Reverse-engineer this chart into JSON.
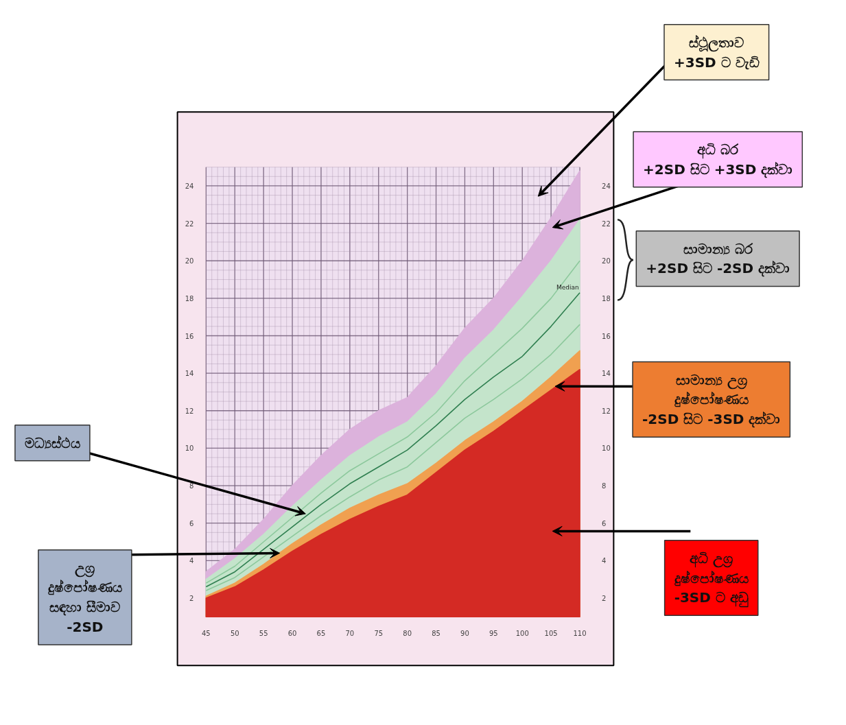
{
  "chart_data": {
    "type": "line",
    "x": [
      45,
      50,
      55,
      60,
      65,
      70,
      75,
      80,
      85,
      90,
      95,
      100,
      105,
      110
    ],
    "series": [
      {
        "type": "area",
        "color": "#dcb2dc",
        "values": [
          3.4,
          4.6,
          6.2,
          8.0,
          9.6,
          11.0,
          12.0,
          12.7,
          14.4,
          16.4,
          18.0,
          20.0,
          22.3,
          24.8
        ]
      },
      {
        "type": "area",
        "color": "#c4e4cb",
        "values": [
          3.0,
          4.1,
          5.4,
          6.9,
          8.3,
          9.6,
          10.6,
          11.4,
          12.9,
          14.8,
          16.3,
          18.1,
          20.0,
          22.2
        ]
      },
      {
        "type": "line",
        "color": "#8cc89c",
        "values": [
          2.8,
          3.7,
          5.0,
          6.3,
          7.6,
          8.8,
          9.7,
          10.6,
          11.9,
          13.6,
          15.0,
          16.4,
          18.0,
          20.0
        ]
      },
      {
        "name": "Median",
        "type": "line",
        "color": "#2f7f50",
        "values": [
          2.6,
          3.4,
          4.6,
          5.8,
          7.0,
          8.1,
          9.0,
          9.9,
          11.2,
          12.6,
          13.8,
          14.9,
          16.5,
          18.3
        ]
      },
      {
        "type": "line",
        "color": "#8cc89c",
        "values": [
          2.4,
          3.1,
          4.2,
          5.3,
          6.4,
          7.4,
          8.3,
          9.0,
          10.3,
          11.6,
          12.6,
          13.7,
          15.0,
          16.6
        ]
      },
      {
        "type": "area",
        "color": "#f0a050",
        "values": [
          2.1,
          2.8,
          3.8,
          4.9,
          5.9,
          6.8,
          7.5,
          8.1,
          9.2,
          10.4,
          11.4,
          12.5,
          13.8,
          15.2
        ]
      },
      {
        "type": "area",
        "color": "#d42a24",
        "values": [
          2.0,
          2.6,
          3.5,
          4.5,
          5.4,
          6.2,
          6.9,
          7.5,
          8.7,
          9.9,
          10.9,
          12.0,
          13.1,
          14.2
        ]
      }
    ],
    "xlim": [
      45,
      110
    ],
    "xticks": [
      45,
      50,
      55,
      60,
      65,
      70,
      75,
      80,
      85,
      90,
      95,
      100,
      105,
      110
    ],
    "ylim": [
      1,
      25
    ],
    "yticks": [
      2,
      4,
      6,
      8,
      10,
      12,
      14,
      16,
      18,
      20,
      22,
      24
    ],
    "y2lim": [
      1,
      25
    ],
    "y2ticks": [
      2,
      4,
      6,
      8,
      10,
      12,
      14,
      16,
      18,
      20,
      22,
      24
    ],
    "grid": true,
    "annotations": [
      "ස්ථූලතාව\n+3SD ට වැඩි",
      "අධි බර\n+2SD සිට +3SD දක්වා",
      "සාමාන්‍ය බර\n+2SD සිට -2SD දක්වා",
      {
        "text": "සාමාන්‍ය උග්‍ර\nදුෂ්පෝෂණය\n-2SD සිට -3SD දක්වා",
        "x": 105.7,
        "y": 13.3
      },
      "අධි උග්‍ර\nදුෂ්පෝෂණය\n-3SD ට අඩු",
      {
        "text": "මධ්‍යස්ථය",
        "x": 62.3,
        "y": 6.5
      },
      {
        "text": "උග්‍ර\nදුෂ්පෝෂණය\nසඳහා සීමාව\n-2SD",
        "x": 57.8,
        "y": 4.4
      }
    ]
  }
}
